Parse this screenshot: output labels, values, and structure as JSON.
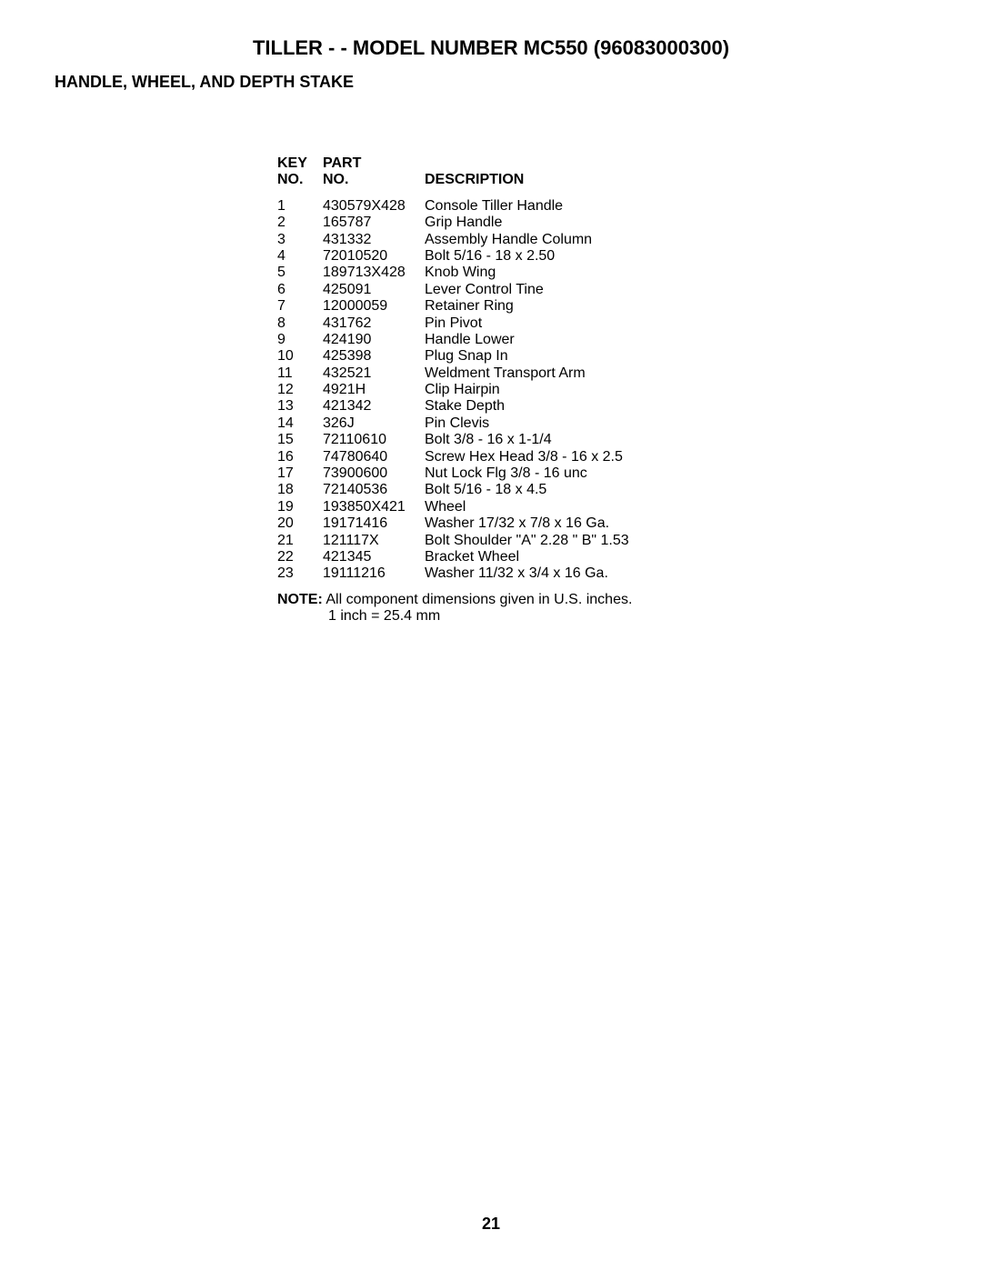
{
  "document": {
    "title": "TILLER - - MODEL NUMBER  MC550  (96083000300)",
    "subtitle": "HANDLE, WHEEL, AND DEPTH STAKE",
    "page_number": "21",
    "background_color": "#ffffff",
    "text_color": "#000000",
    "font_family": "Arial, Helvetica, sans-serif",
    "title_fontsize": 22,
    "subtitle_fontsize": 18,
    "body_fontsize": 16
  },
  "table": {
    "headers": {
      "key_line1": "KEY",
      "key_line2": "NO.",
      "part_line1": "PART",
      "part_line2": "NO.",
      "desc": "DESCRIPTION"
    },
    "column_widths": {
      "key": 50,
      "part": 112
    },
    "rows": [
      {
        "key": "1",
        "part": "430579X428",
        "desc": "Console Tiller Handle"
      },
      {
        "key": "2",
        "part": "165787",
        "desc": "Grip Handle"
      },
      {
        "key": "3",
        "part": "431332",
        "desc": "Assembly Handle Column"
      },
      {
        "key": "4",
        "part": "72010520",
        "desc": "Bolt 5/16 - 18 x 2.50"
      },
      {
        "key": "5",
        "part": "189713X428",
        "desc": "Knob Wing"
      },
      {
        "key": "6",
        "part": "425091",
        "desc": "Lever Control Tine"
      },
      {
        "key": "7",
        "part": "12000059",
        "desc": "Retainer Ring"
      },
      {
        "key": "8",
        "part": "431762",
        "desc": "Pin Pivot"
      },
      {
        "key": "9",
        "part": "424190",
        "desc": "Handle Lower"
      },
      {
        "key": "10",
        "part": "425398",
        "desc": "Plug Snap In"
      },
      {
        "key": "11",
        "part": "432521",
        "desc": "Weldment Transport Arm"
      },
      {
        "key": "12",
        "part": "4921H",
        "desc": "Clip Hairpin"
      },
      {
        "key": "13",
        "part": "421342",
        "desc": "Stake Depth"
      },
      {
        "key": "14",
        "part": "326J",
        "desc": "Pin Clevis"
      },
      {
        "key": "15",
        "part": "72110610",
        "desc": "Bolt 3/8 - 16 x 1-1/4"
      },
      {
        "key": "16",
        "part": "74780640",
        "desc": "Screw Hex Head 3/8 - 16 x 2.5"
      },
      {
        "key": "17",
        "part": "73900600",
        "desc": "Nut Lock Flg 3/8 - 16 unc"
      },
      {
        "key": "18",
        "part": "72140536",
        "desc": "Bolt 5/16 - 18 x 4.5"
      },
      {
        "key": "19",
        "part": "193850X421",
        "desc": "Wheel"
      },
      {
        "key": "20",
        "part": "19171416",
        "desc": "Washer 17/32 x 7/8 x 16 Ga."
      },
      {
        "key": "21",
        "part": "121117X",
        "desc": "Bolt Shoulder \"A\" 2.28 \" B\" 1.53"
      },
      {
        "key": "22",
        "part": "421345",
        "desc": "Bracket Wheel"
      },
      {
        "key": "23",
        "part": "19111216",
        "desc": "Washer 11/32 x 3/4 x 16 Ga."
      }
    ]
  },
  "note": {
    "label": "NOTE:",
    "text": "All component dimensions given in U.S. inches.",
    "conversion": "1 inch = 25.4 mm"
  }
}
